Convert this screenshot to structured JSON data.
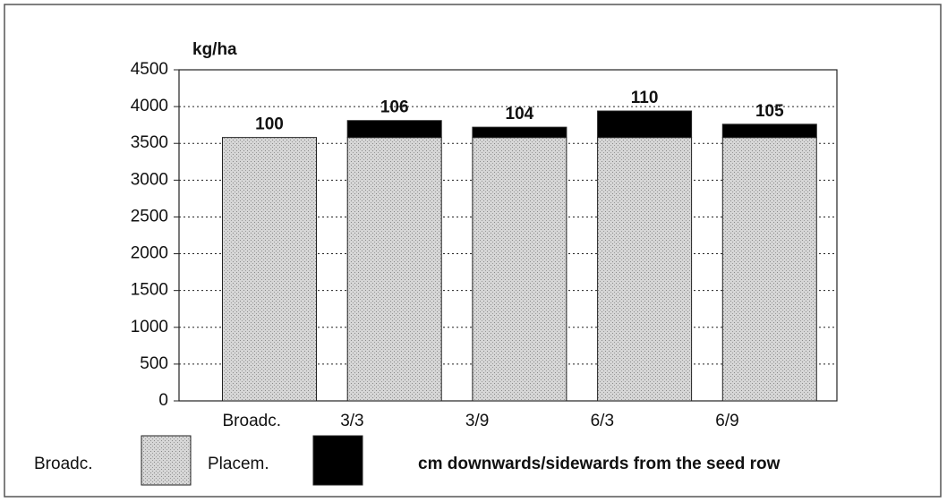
{
  "chart_data": {
    "type": "stacked_bar",
    "y_label": "kg/ha",
    "x_label": "cm downwards/sidewards from the seed row",
    "categories": [
      "Broadc.",
      "3/3",
      "3/9",
      "6/3",
      "6/9"
    ],
    "series": [
      {
        "name": "Broadc.",
        "color": "#d2d2d2",
        "values": [
          3580,
          3580,
          3580,
          3580,
          3580
        ]
      },
      {
        "name": "Placem.",
        "color": "#000000",
        "values": [
          0,
          230,
          140,
          360,
          180
        ]
      }
    ],
    "annotations": [
      "100",
      "106",
      "104",
      "110",
      "105"
    ],
    "ylim": [
      0,
      4500
    ],
    "yticks": [
      0,
      500,
      1000,
      1500,
      2000,
      2500,
      3000,
      3500,
      4000,
      4500
    ],
    "grid": true
  }
}
